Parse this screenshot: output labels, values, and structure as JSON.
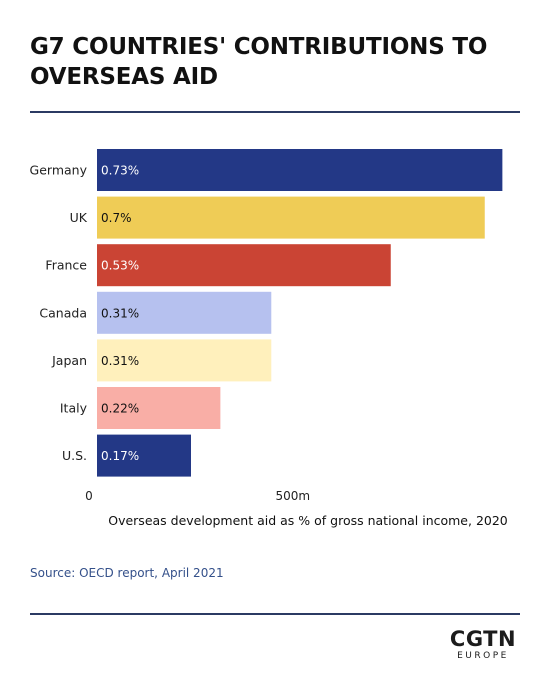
{
  "header": {
    "title_line1": "G7 COUNTRIES' CONTRIBUTIONS TO",
    "title_line2": "OVERSEAS AID"
  },
  "colors": {
    "rule": "#2b3a63",
    "source_text": "#34508a",
    "label_text": "#222222"
  },
  "chart_data": {
    "type": "bar",
    "orientation": "horizontal",
    "title": "G7 COUNTRIES' CONTRIBUTIONS TO OVERSEAS AID",
    "xlabel": "Overseas development aid as % of gross national income, 2020",
    "ylabel": "",
    "x_ticks": [
      {
        "value": 0,
        "label": "0"
      },
      {
        "value": 500,
        "label": "500m"
      }
    ],
    "xlim": [
      0,
      1080
    ],
    "categories": [
      "Germany",
      "UK",
      "France",
      "Canada",
      "Japan",
      "Italy",
      "U.S."
    ],
    "values": [
      1035,
      990,
      750,
      445,
      445,
      315,
      240
    ],
    "data_labels": [
      "0.73%",
      "0.7%",
      "0.53%",
      "0.31%",
      "0.31%",
      "0.22%",
      "0.17%"
    ],
    "bar_colors": [
      "#233886",
      "#efcc56",
      "#ca4434",
      "#b6c1ef",
      "#fff0bc",
      "#f9aea6",
      "#233886"
    ],
    "label_colors": [
      "#ffffff",
      "#111111",
      "#ffffff",
      "#111111",
      "#111111",
      "#111111",
      "#ffffff"
    ],
    "grid": false,
    "legend": "none"
  },
  "footer": {
    "source": "Source: OECD report, April 2021",
    "logo_main": "CGTN",
    "logo_sub": "EUROPE"
  }
}
